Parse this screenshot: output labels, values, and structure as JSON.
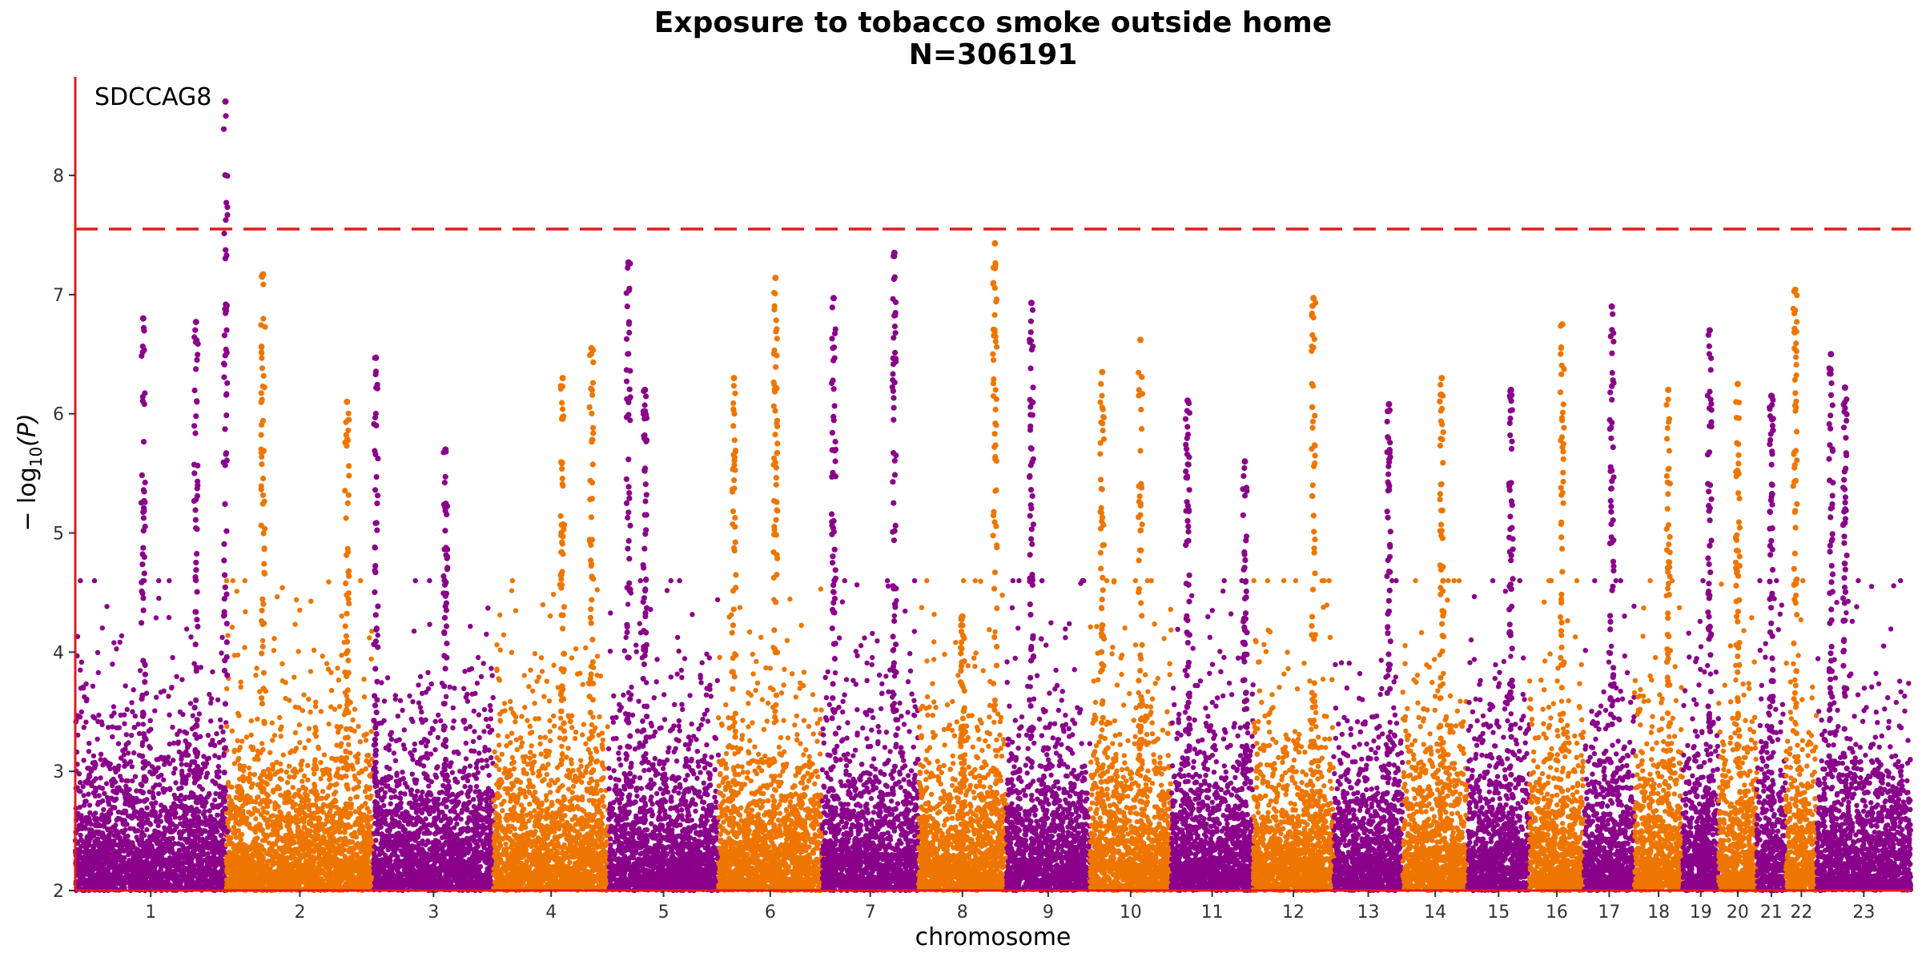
{
  "chart_data": {
    "type": "scatter",
    "title": "Exposure to tobacco smoke outside home",
    "subtitle": "N=306191",
    "xlabel": "chromosome",
    "ylabel_main": "− log",
    "ylabel_sub": "10",
    "ylabel_tail": "(P)",
    "ylim": [
      2,
      8.8
    ],
    "yticks": [
      "2",
      "3",
      "4",
      "5",
      "6",
      "7",
      "8"
    ],
    "threshold": 7.55,
    "grid": false,
    "legend": "none",
    "colors": {
      "odd": "#8B008B",
      "even": "#EE7600",
      "axis": "#E31A1C"
    },
    "annotation": {
      "label": "SDCCAG8",
      "chromosome": 1,
      "value": 8.62
    },
    "chromosomes": [
      {
        "label": "1",
        "size": 249,
        "ymax": 8.62,
        "peaks": [
          {
            "pos": 0.45,
            "v": 6.8
          },
          {
            "pos": 0.995,
            "v": 8.62
          },
          {
            "pos": 0.8,
            "v": 6.77
          }
        ]
      },
      {
        "label": "2",
        "size": 243,
        "ymax": 7.17,
        "peaks": [
          {
            "pos": 0.25,
            "v": 7.17
          },
          {
            "pos": 0.82,
            "v": 6.1
          }
        ]
      },
      {
        "label": "3",
        "size": 198,
        "ymax": 6.47,
        "peaks": [
          {
            "pos": 0.02,
            "v": 6.47
          },
          {
            "pos": 0.6,
            "v": 5.7
          }
        ]
      },
      {
        "label": "4",
        "size": 190,
        "ymax": 6.55,
        "peaks": [
          {
            "pos": 0.85,
            "v": 6.55
          },
          {
            "pos": 0.6,
            "v": 6.3
          }
        ]
      },
      {
        "label": "5",
        "size": 181,
        "ymax": 7.27,
        "peaks": [
          {
            "pos": 0.18,
            "v": 7.27
          },
          {
            "pos": 0.33,
            "v": 6.2
          }
        ]
      },
      {
        "label": "6",
        "size": 171,
        "ymax": 7.14,
        "peaks": [
          {
            "pos": 0.55,
            "v": 7.14
          },
          {
            "pos": 0.15,
            "v": 6.3
          }
        ]
      },
      {
        "label": "7",
        "size": 159,
        "ymax": 7.35,
        "peaks": [
          {
            "pos": 0.75,
            "v": 7.35
          },
          {
            "pos": 0.12,
            "v": 6.97
          }
        ]
      },
      {
        "label": "8",
        "size": 145,
        "ymax": 7.43,
        "peaks": [
          {
            "pos": 0.87,
            "v": 7.43
          },
          {
            "pos": 0.5,
            "v": 4.3
          }
        ]
      },
      {
        "label": "9",
        "size": 138,
        "ymax": 6.93,
        "peaks": [
          {
            "pos": 0.3,
            "v": 6.93
          }
        ]
      },
      {
        "label": "10",
        "size": 134,
        "ymax": 6.62,
        "peaks": [
          {
            "pos": 0.62,
            "v": 6.62
          },
          {
            "pos": 0.15,
            "v": 6.35
          }
        ]
      },
      {
        "label": "11",
        "size": 135,
        "ymax": 6.11,
        "peaks": [
          {
            "pos": 0.2,
            "v": 6.11
          },
          {
            "pos": 0.9,
            "v": 5.6
          }
        ]
      },
      {
        "label": "12",
        "size": 133,
        "ymax": 6.97,
        "peaks": [
          {
            "pos": 0.75,
            "v": 6.97
          }
        ]
      },
      {
        "label": "13",
        "size": 114,
        "ymax": 6.08,
        "peaks": [
          {
            "pos": 0.8,
            "v": 6.08
          }
        ]
      },
      {
        "label": "14",
        "size": 107,
        "ymax": 6.3,
        "peaks": [
          {
            "pos": 0.6,
            "v": 6.3
          }
        ]
      },
      {
        "label": "15",
        "size": 102,
        "ymax": 6.2,
        "peaks": [
          {
            "pos": 0.7,
            "v": 6.2
          }
        ]
      },
      {
        "label": "16",
        "size": 90,
        "ymax": 6.75,
        "peaks": [
          {
            "pos": 0.6,
            "v": 6.75
          }
        ]
      },
      {
        "label": "17",
        "size": 83,
        "ymax": 6.9,
        "peaks": [
          {
            "pos": 0.55,
            "v": 6.9
          }
        ]
      },
      {
        "label": "18",
        "size": 80,
        "ymax": 6.2,
        "peaks": [
          {
            "pos": 0.7,
            "v": 6.2
          }
        ]
      },
      {
        "label": "19",
        "size": 59,
        "ymax": 6.7,
        "peaks": [
          {
            "pos": 0.75,
            "v": 6.7
          }
        ]
      },
      {
        "label": "20",
        "size": 63,
        "ymax": 6.25,
        "peaks": [
          {
            "pos": 0.5,
            "v": 6.25
          }
        ]
      },
      {
        "label": "21",
        "size": 48,
        "ymax": 6.15,
        "peaks": [
          {
            "pos": 0.5,
            "v": 6.15
          }
        ]
      },
      {
        "label": "22",
        "size": 51,
        "ymax": 7.04,
        "peaks": [
          {
            "pos": 0.3,
            "v": 7.04
          }
        ]
      },
      {
        "label": "23",
        "size": 155,
        "ymax": 6.5,
        "peaks": [
          {
            "pos": 0.15,
            "v": 6.5
          },
          {
            "pos": 0.3,
            "v": 6.22
          }
        ]
      }
    ]
  }
}
